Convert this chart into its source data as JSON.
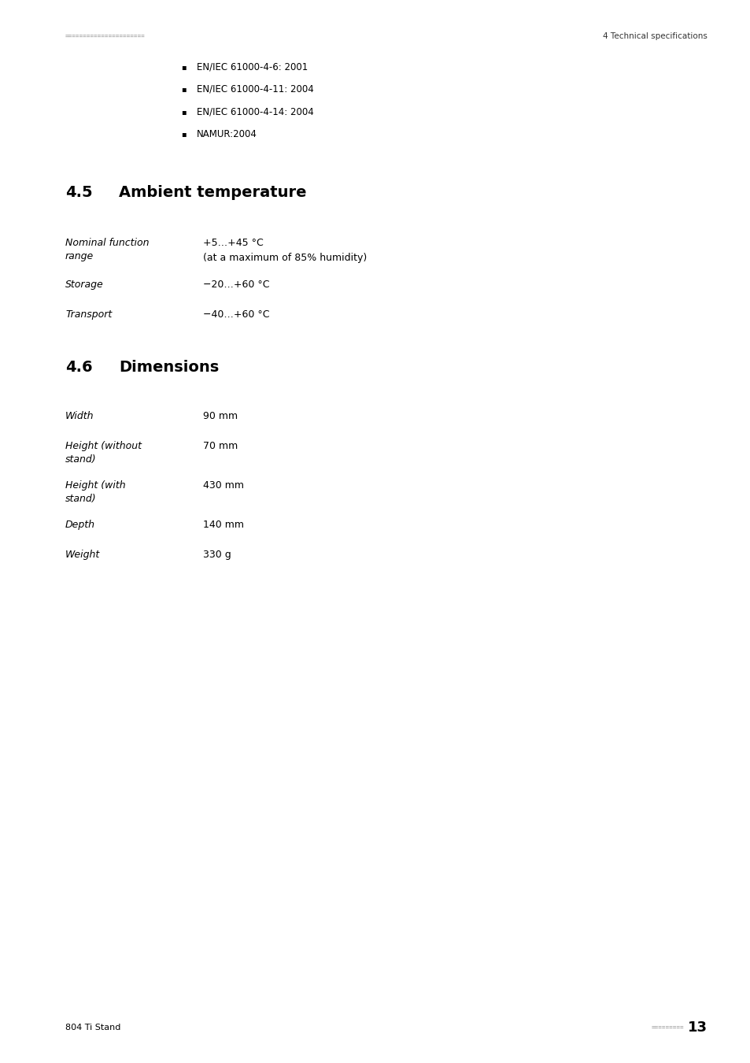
{
  "background_color": "#ffffff",
  "page_width": 9.54,
  "page_height": 13.5,
  "header_dots": "======================",
  "header_right": "4 Technical specifications",
  "bullet_items": [
    "EN/IEC 61000-4-6: 2001",
    "EN/IEC 61000-4-11: 2004",
    "EN/IEC 61000-4-14: 2004",
    "NAMUR:2004"
  ],
  "section_45_number": "4.5",
  "section_45_title": "Ambient temperature",
  "temp_rows": [
    {
      "label_lines": [
        "Nominal function",
        "range"
      ],
      "value_lines": [
        "+5…+45 °C",
        "(at a maximum of 85% humidity)"
      ]
    },
    {
      "label_lines": [
        "Storage"
      ],
      "value_lines": [
        "−20…+60 °C"
      ]
    },
    {
      "label_lines": [
        "Transport"
      ],
      "value_lines": [
        "−40…+60 °C"
      ]
    }
  ],
  "section_46_number": "4.6",
  "section_46_title": "Dimensions",
  "dim_rows": [
    {
      "label_lines": [
        "Width"
      ],
      "value": "90 mm"
    },
    {
      "label_lines": [
        "Height (without",
        "stand)"
      ],
      "value": "70 mm"
    },
    {
      "label_lines": [
        "Height (with",
        "stand)"
      ],
      "value": "430 mm"
    },
    {
      "label_lines": [
        "Depth"
      ],
      "value": "140 mm"
    },
    {
      "label_lines": [
        "Weight"
      ],
      "value": "330 g"
    }
  ],
  "footer_left": "804 Ti Stand",
  "footer_page": "13"
}
